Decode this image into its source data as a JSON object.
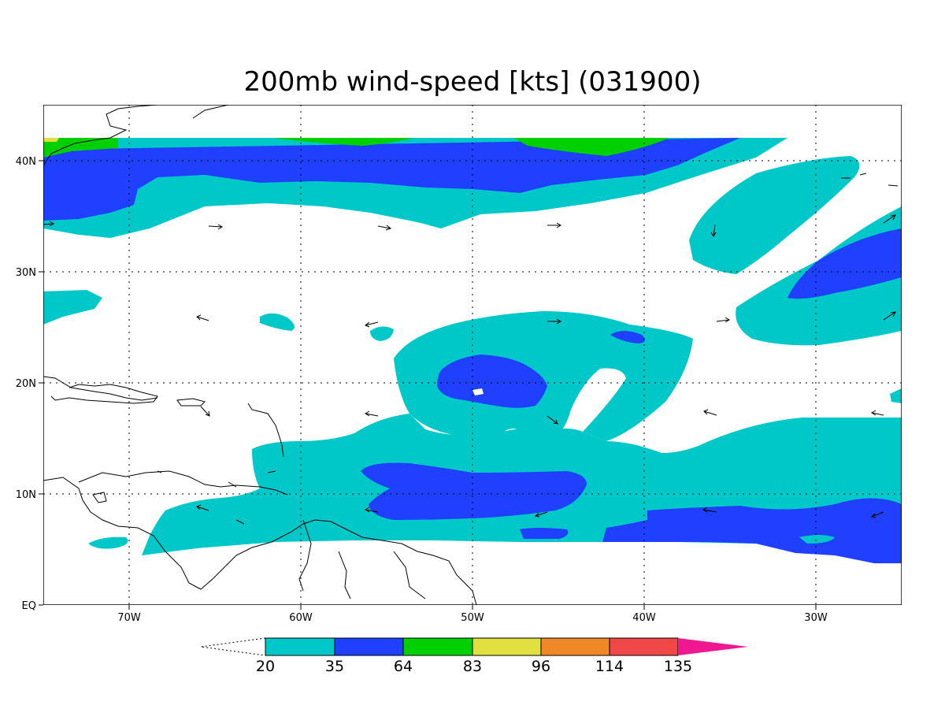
{
  "title": "200mb wind-speed [kts] (031900)",
  "map": {
    "lon_range": [
      -75,
      -25
    ],
    "lat_range": [
      0,
      45
    ],
    "x_ticks": [
      "70W",
      "60W",
      "50W",
      "40W",
      "30W"
    ],
    "y_ticks": [
      "EQ",
      "10N",
      "20N",
      "30N",
      "40N"
    ],
    "gridlines": true,
    "shading_levels": [
      20,
      35,
      64,
      83,
      96,
      114,
      135
    ],
    "wind_vectors": true,
    "coastlines": true
  },
  "colorbar": {
    "labels": [
      "20",
      "35",
      "64",
      "83",
      "96",
      "114",
      "135"
    ],
    "colors": [
      "#00c8c8",
      "#2040ff",
      "#00d000",
      "#e0e040",
      "#f08828",
      "#f04848",
      "#f01890"
    ]
  },
  "colors": {
    "cyan": "#00c8c8",
    "blue": "#2040ff",
    "green": "#00d000",
    "yellow": "#e0e040"
  }
}
